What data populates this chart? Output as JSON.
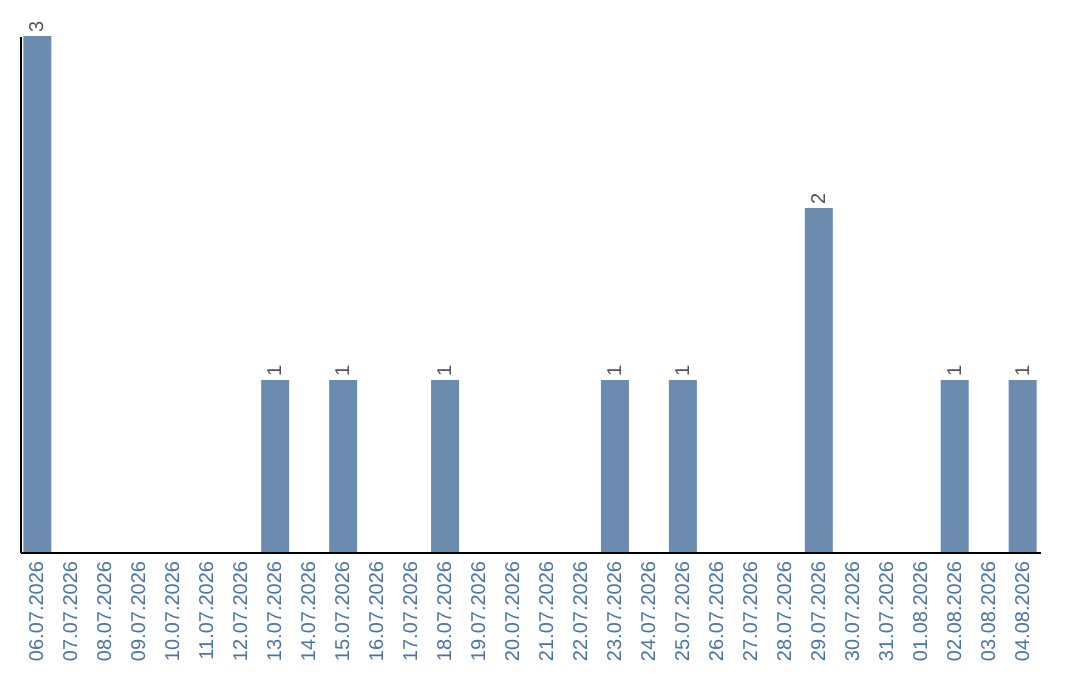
{
  "chart_data": {
    "type": "bar",
    "categories": [
      "06.07.2026",
      "07.07.2026",
      "08.07.2026",
      "09.07.2026",
      "10.07.2026",
      "11.07.2026",
      "12.07.2026",
      "13.07.2026",
      "14.07.2026",
      "15.07.2026",
      "16.07.2026",
      "17.07.2026",
      "18.07.2026",
      "19.07.2026",
      "20.07.2026",
      "21.07.2026",
      "22.07.2026",
      "23.07.2026",
      "24.07.2026",
      "25.07.2026",
      "26.07.2026",
      "27.07.2026",
      "28.07.2026",
      "29.07.2026",
      "30.07.2026",
      "31.07.2026",
      "01.08.2026",
      "02.08.2026",
      "03.08.2026",
      "04.08.2026"
    ],
    "values": [
      3,
      0,
      0,
      0,
      0,
      0,
      0,
      1,
      0,
      1,
      0,
      0,
      1,
      0,
      0,
      0,
      0,
      1,
      0,
      1,
      0,
      0,
      0,
      2,
      0,
      0,
      0,
      1,
      0,
      1
    ],
    "value_labels": [
      "3",
      null,
      null,
      null,
      null,
      null,
      null,
      "1",
      null,
      "1",
      null,
      null,
      "1",
      null,
      null,
      null,
      null,
      "1",
      null,
      "1",
      null,
      null,
      null,
      "2",
      null,
      null,
      null,
      "1",
      null,
      "1"
    ],
    "color": "#6b8cae",
    "grid": false,
    "tick_labels": "x"
  }
}
